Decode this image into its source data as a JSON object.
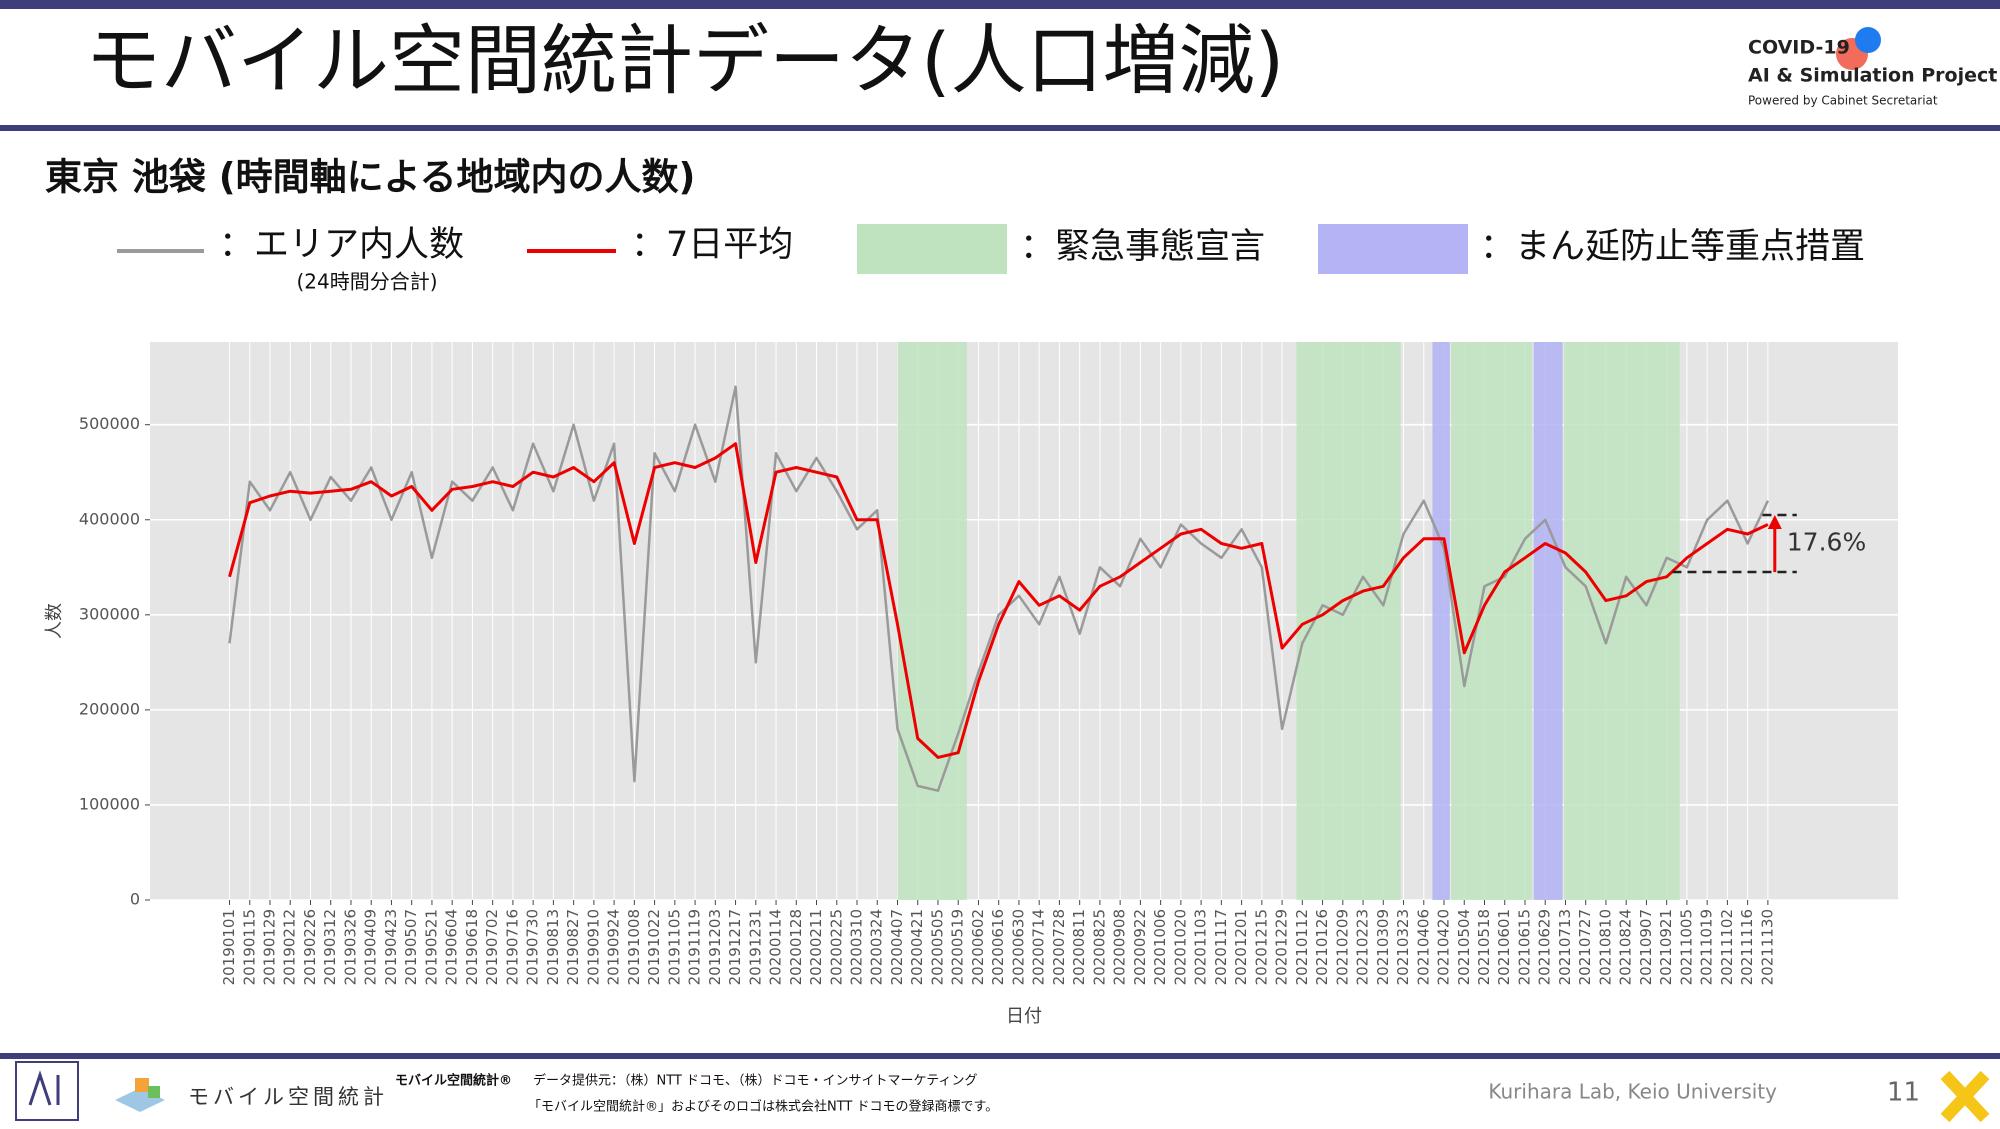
{
  "header": {
    "title": "モバイル空間統計データ(人口増減)",
    "logo_line1": "COVID-19",
    "logo_line2": "AI & Simulation Project",
    "logo_line3": "Powered by Cabinet Secretariat"
  },
  "subtitle": "東京 池袋 (時間軸による地域内の人数)",
  "chart_data": {
    "type": "line",
    "xlabel": "日付",
    "ylabel": "人数",
    "x": [
      "20190101",
      "20190115",
      "20190129",
      "20190212",
      "20190226",
      "20190312",
      "20190326",
      "20190409",
      "20190423",
      "20190507",
      "20190521",
      "20190604",
      "20190618",
      "20190702",
      "20190716",
      "20190730",
      "20190813",
      "20190827",
      "20190910",
      "20190924",
      "20191008",
      "20191022",
      "20191105",
      "20191119",
      "20191203",
      "20191217",
      "20191231",
      "20200114",
      "20200128",
      "20200211",
      "20200225",
      "20200310",
      "20200324",
      "20200407",
      "20200421",
      "20200505",
      "20200519",
      "20200602",
      "20200616",
      "20200630",
      "20200714",
      "20200728",
      "20200811",
      "20200825",
      "20200908",
      "20200922",
      "20201006",
      "20201020",
      "20201103",
      "20201117",
      "20201201",
      "20201215",
      "20201229",
      "20210112",
      "20210126",
      "20210209",
      "20210223",
      "20210309",
      "20210323",
      "20210406",
      "20210420",
      "20210504",
      "20210518",
      "20210601",
      "20210615",
      "20210629",
      "20210713",
      "20210727",
      "20210810",
      "20210824",
      "20210907",
      "20210921",
      "20211005",
      "20211019",
      "20211102",
      "20211116",
      "20211130"
    ],
    "xlim": [
      "20181107",
      "20220228"
    ],
    "series": [
      {
        "name": "：エリア内人数",
        "note": "(24時間分合計)",
        "color": "#9a9a9a",
        "values": [
          270000,
          440000,
          410000,
          450000,
          400000,
          445000,
          420000,
          455000,
          400000,
          450000,
          360000,
          440000,
          420000,
          455000,
          410000,
          480000,
          430000,
          500000,
          420000,
          480000,
          125000,
          470000,
          430000,
          500000,
          440000,
          540000,
          250000,
          470000,
          430000,
          465000,
          430000,
          390000,
          410000,
          180000,
          120000,
          115000,
          175000,
          240000,
          300000,
          320000,
          290000,
          340000,
          280000,
          350000,
          330000,
          380000,
          350000,
          395000,
          375000,
          360000,
          390000,
          350000,
          180000,
          270000,
          310000,
          300000,
          340000,
          310000,
          385000,
          420000,
          370000,
          225000,
          330000,
          340000,
          380000,
          400000,
          350000,
          330000,
          270000,
          340000,
          310000,
          360000,
          350000,
          400000,
          420000,
          375000,
          420000
        ]
      },
      {
        "name": "：7日平均",
        "color": "#ee0000",
        "values": [
          340000,
          418000,
          425000,
          430000,
          428000,
          430000,
          432000,
          440000,
          425000,
          435000,
          410000,
          432000,
          435000,
          440000,
          435000,
          450000,
          445000,
          455000,
          440000,
          460000,
          375000,
          455000,
          460000,
          455000,
          465000,
          480000,
          355000,
          450000,
          455000,
          450000,
          445000,
          400000,
          400000,
          290000,
          170000,
          150000,
          155000,
          230000,
          290000,
          335000,
          310000,
          320000,
          305000,
          330000,
          340000,
          355000,
          370000,
          385000,
          390000,
          375000,
          370000,
          375000,
          265000,
          290000,
          300000,
          315000,
          325000,
          330000,
          360000,
          380000,
          380000,
          260000,
          310000,
          345000,
          360000,
          375000,
          365000,
          345000,
          315000,
          320000,
          335000,
          340000,
          360000,
          375000,
          390000,
          385000,
          395000
        ]
      }
    ],
    "bands": [
      {
        "name": "：緊急事態宣言",
        "color": "#bfe3bf",
        "ranges": [
          [
            "20200407",
            "20200525"
          ],
          [
            "20210108",
            "20210321"
          ],
          [
            "20210425",
            "20210620"
          ],
          [
            "20210712",
            "20210930"
          ]
        ]
      },
      {
        "name": "：まん延防止等重点措置",
        "color": "#b3b3f5",
        "ranges": [
          [
            "20210412",
            "20210424"
          ],
          [
            "20210621",
            "20210711"
          ]
        ]
      }
    ],
    "ylim": [
      0,
      587000
    ],
    "yticks": [
      0,
      100000,
      200000,
      300000,
      400000,
      500000
    ],
    "grid": true,
    "annotation": {
      "text": "17.6%",
      "from": 345000,
      "to": 405000,
      "start": "20210925",
      "end": "20211220"
    }
  },
  "footer": {
    "logo_text": "モバイル空間統計",
    "brand": "モバイル空間統計®",
    "source": "データ提供元：（株）NTT ドコモ、（株）ドコモ・インサイトマーケティング",
    "trademark": "「モバイル空間統計®」およびそのロゴは株式会社NTT ドコモの登録商標です。",
    "credit": "Kurihara Lab, Keio University",
    "page": "11"
  }
}
